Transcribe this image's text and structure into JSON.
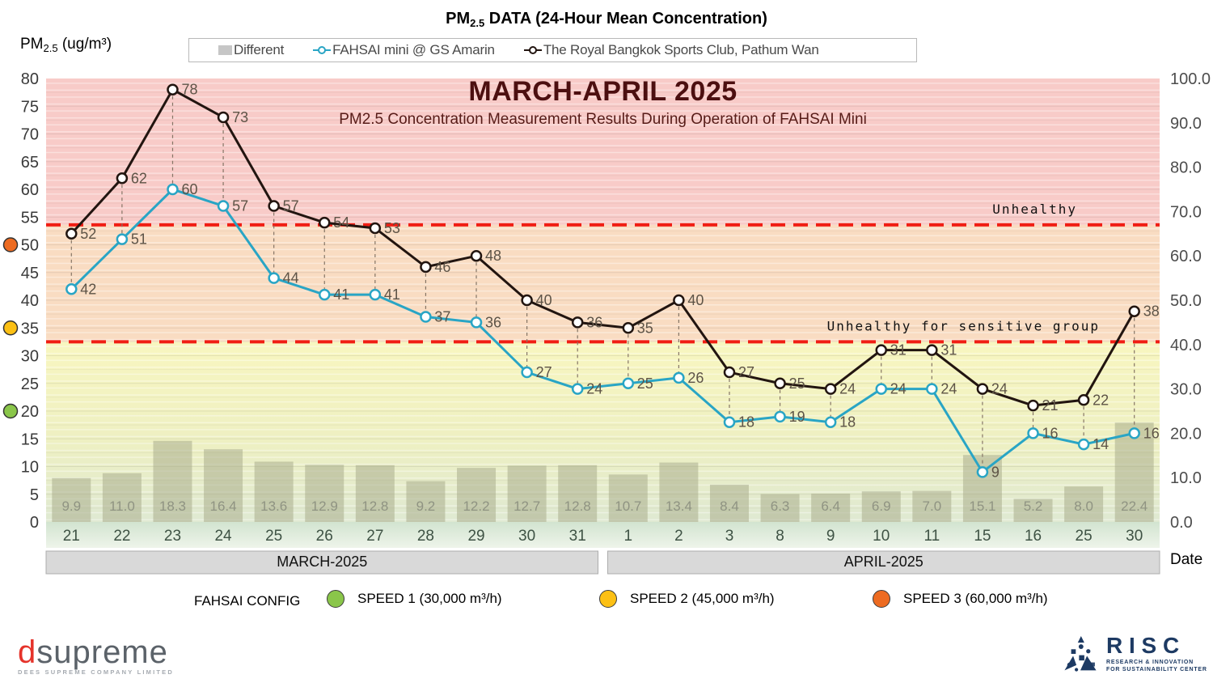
{
  "header": {
    "title_prefix": "PM",
    "title_sub": "2.5",
    "title_rest": " DATA (24-Hour Mean Concentration)",
    "yaxis_prefix": "PM",
    "yaxis_sub": "2.5",
    "yaxis_rest": " (ug/m³)"
  },
  "legend": {
    "different": "Different",
    "fahsai": "FAHSAI mini @ GS Amarin",
    "rbsc": "The Royal Bangkok Sports Club, Pathum Wan"
  },
  "chart_data": {
    "type": "line+bar",
    "title": "MARCH-APRIL 2025",
    "subtitle": "PM2.5 Concentration Measurement Results During Operation of FAHSAI Mini",
    "xlabel": "Date",
    "categories": [
      "21",
      "22",
      "23",
      "24",
      "25",
      "26",
      "27",
      "28",
      "29",
      "30",
      "31",
      "1",
      "2",
      "3",
      "8",
      "9",
      "10",
      "11",
      "15",
      "16",
      "25",
      "30"
    ],
    "month_groups": [
      {
        "label": "MARCH-2025",
        "start": 0,
        "end": 10
      },
      {
        "label": "APRIL-2025",
        "start": 11,
        "end": 21
      }
    ],
    "series": [
      {
        "name": "Different",
        "type": "bar",
        "axis": "right",
        "color": "#a9ad8d",
        "values": [
          9.9,
          11.0,
          18.3,
          16.4,
          13.6,
          12.9,
          12.8,
          9.2,
          12.2,
          12.7,
          12.8,
          10.7,
          13.4,
          8.4,
          6.3,
          6.4,
          6.9,
          7.0,
          15.1,
          5.2,
          8.0,
          22.4
        ]
      },
      {
        "name": "FAHSAI mini @ GS Amarin",
        "type": "line",
        "axis": "left",
        "color": "#29a5c5",
        "values": [
          42,
          51,
          60,
          57,
          44,
          41,
          41,
          37,
          36,
          27,
          24,
          25,
          26,
          18,
          19,
          18,
          24,
          24,
          9,
          16,
          14,
          16
        ]
      },
      {
        "name": "The Royal Bangkok Sports Club, Pathum Wan",
        "type": "line",
        "axis": "left",
        "color": "#221510",
        "values": [
          52,
          62,
          78,
          73,
          57,
          54,
          53,
          46,
          48,
          40,
          36,
          35,
          40,
          27,
          25,
          24,
          31,
          31,
          24,
          21,
          22,
          38
        ]
      }
    ],
    "left_axis": {
      "min": 0,
      "max": 80,
      "step": 5
    },
    "right_axis": {
      "min": 0,
      "max": 100,
      "step": 10
    },
    "thresholds": [
      {
        "label": "Unhealthy",
        "value": 53.6
      },
      {
        "label": "Unhealthy for sensitive group",
        "value": 32.5
      }
    ],
    "speed_markers": [
      {
        "value": 50,
        "color": "#ed6b21"
      },
      {
        "value": 35,
        "color": "#fcc014"
      },
      {
        "value": 20,
        "color": "#8ac64a"
      }
    ],
    "zone_colors": {
      "unhealthy": "#f8cbc8",
      "sensitive": "#f9dcc2",
      "moderate_top": "#f8f6c0",
      "moderate_bottom": "#dfe9d2"
    }
  },
  "config_legend": {
    "title": "FAHSAI CONFIG",
    "items": [
      {
        "label": "SPEED 1 (30,000 m³/h)",
        "color": "#8ac64a"
      },
      {
        "label": "SPEED 2 (45,000 m³/h)",
        "color": "#fcc014"
      },
      {
        "label": "SPEED 3 (60,000 m³/h)",
        "color": "#ed6b21"
      }
    ]
  },
  "footer": {
    "dsupreme_d": "d",
    "dsupreme_rest": "supreme",
    "dsupreme_sub": "DEES SUPREME COMPANY LIMITED",
    "risc_name": "R I S C",
    "risc_line1": "RESEARCH & INNOVATION",
    "risc_line2": "FOR SUSTAINABILITY CENTER"
  }
}
